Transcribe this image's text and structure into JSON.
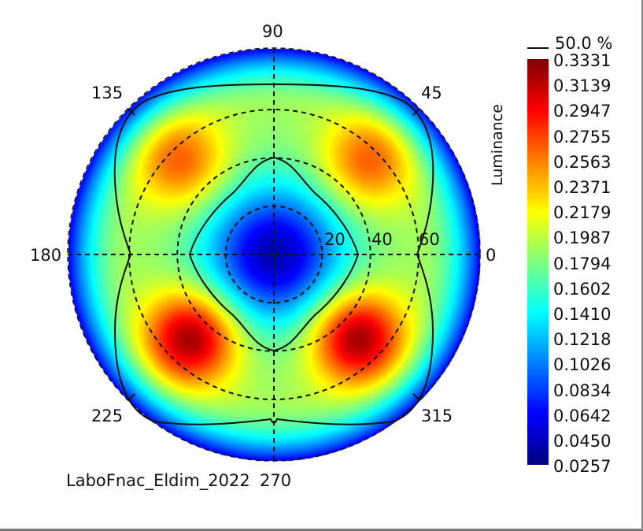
{
  "chart_data": {
    "type": "heatmap",
    "subtype": "polar",
    "title": "",
    "colorbar_label": "Luminance",
    "colorbar_ticks": [
      "0.3331",
      "0.3139",
      "0.2947",
      "0.2755",
      "0.2563",
      "0.2371",
      "0.2179",
      "0.1987",
      "0.1794",
      "0.1602",
      "0.1410",
      "0.1218",
      "0.1026",
      "0.0834",
      "0.0642",
      "0.0450",
      "0.0257"
    ],
    "value_range": [
      0.0257,
      0.3331
    ],
    "contour_legend": "50.0 %",
    "angle_labels": [
      "0",
      "45",
      "90",
      "135",
      "180",
      "225",
      "270",
      "315"
    ],
    "radius_labels": [
      "20",
      "40",
      "60"
    ],
    "footer": "LaboFnac_Eldim_2022",
    "colors": {
      "min": "#0000ff",
      "mid": "#00ff00",
      "max": "#ff0000"
    }
  }
}
